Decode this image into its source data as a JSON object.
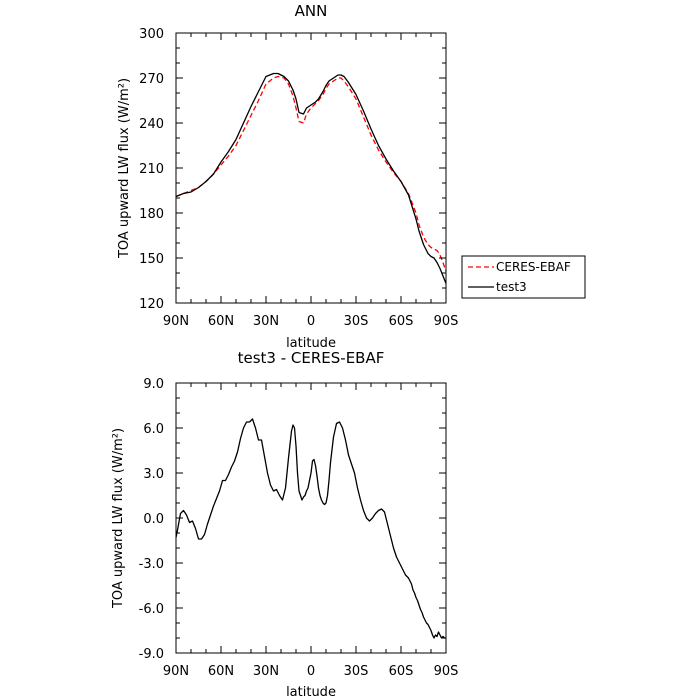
{
  "chart_data": [
    {
      "type": "line",
      "title": "ANN",
      "xlabel": "latitude",
      "ylabel": "TOA upward LW flux (W/m²)",
      "xlim": [
        90,
        -90
      ],
      "ylim": [
        120,
        300
      ],
      "x_ticks": [
        90,
        60,
        30,
        0,
        -30,
        -60,
        -90
      ],
      "x_tick_labels": [
        "90N",
        "60N",
        "30N",
        "0",
        "30S",
        "60S",
        "90S"
      ],
      "y_ticks": [
        120,
        150,
        180,
        210,
        240,
        270,
        300
      ],
      "y_tick_labels": [
        "120",
        "150",
        "180",
        "210",
        "240",
        "270",
        "300"
      ],
      "legend_position": "right",
      "series": [
        {
          "name": "CERES-EBAF",
          "color": "#ff0000",
          "dash": "dashed",
          "x": [
            90,
            85,
            80,
            75,
            70,
            65,
            60,
            55,
            50,
            45,
            40,
            35,
            30,
            25,
            22,
            18,
            15,
            12,
            10,
            8,
            5,
            3,
            0,
            -3,
            -5,
            -8,
            -10,
            -12,
            -15,
            -18,
            -20,
            -22,
            -25,
            -30,
            -35,
            -40,
            -45,
            -50,
            -55,
            -60,
            -65,
            -70,
            -72,
            -75,
            -78,
            -80,
            -82,
            -84,
            -86,
            -88,
            -90
          ],
          "y": [
            191,
            193,
            195,
            197,
            201,
            206,
            212,
            218,
            225,
            235,
            245,
            255,
            266,
            270,
            271,
            270,
            266,
            258,
            250,
            241,
            240,
            246,
            250,
            253,
            255,
            259,
            263,
            266,
            268,
            270,
            270,
            268,
            264,
            256,
            244,
            232,
            222,
            214,
            207,
            201,
            193,
            180,
            172,
            164,
            159,
            157,
            156,
            155,
            152,
            147,
            141
          ]
        },
        {
          "name": "test3",
          "color": "#000000",
          "dash": "solid",
          "x": [
            90,
            85,
            80,
            75,
            70,
            65,
            60,
            55,
            50,
            45,
            40,
            35,
            30,
            25,
            22,
            18,
            15,
            12,
            10,
            8,
            5,
            3,
            0,
            -3,
            -5,
            -8,
            -10,
            -12,
            -15,
            -18,
            -20,
            -22,
            -25,
            -30,
            -35,
            -40,
            -45,
            -50,
            -55,
            -60,
            -65,
            -70,
            -72,
            -75,
            -78,
            -80,
            -82,
            -84,
            -86,
            -88,
            -90
          ],
          "y": [
            191,
            193,
            194,
            197,
            201,
            206,
            214,
            221,
            229,
            240,
            251,
            261,
            271,
            273,
            273,
            271,
            268,
            262,
            256,
            247,
            246,
            250,
            252,
            254,
            256,
            261,
            265,
            268,
            270,
            272,
            272,
            271,
            267,
            259,
            248,
            236,
            225,
            216,
            208,
            201,
            192,
            176,
            168,
            159,
            153,
            151,
            150,
            147,
            143,
            138,
            133
          ]
        }
      ]
    },
    {
      "type": "line",
      "title": "test3 - CERES-EBAF",
      "xlabel": "latitude",
      "ylabel": "TOA upward LW flux (W/m²)",
      "xlim": [
        90,
        -90
      ],
      "ylim": [
        -9,
        9
      ],
      "x_ticks": [
        90,
        60,
        30,
        0,
        -30,
        -60,
        -90
      ],
      "x_tick_labels": [
        "90N",
        "60N",
        "30N",
        "0",
        "30S",
        "60S",
        "90S"
      ],
      "y_ticks": [
        -9,
        -6,
        -3,
        0,
        3,
        6,
        9
      ],
      "y_tick_labels": [
        "-9.0",
        "-6.0",
        "-3.0",
        "0.0",
        "3.0",
        "6.0",
        "9.0"
      ],
      "series": [
        {
          "color": "#000000",
          "dash": "solid",
          "x": [
            90,
            89,
            87,
            85,
            83,
            81,
            79,
            77,
            75,
            73,
            71,
            69,
            67,
            65,
            63,
            61,
            59,
            57,
            55,
            53,
            51,
            49,
            47,
            45,
            43,
            41,
            39,
            37,
            35,
            33,
            31,
            29,
            27,
            25,
            23,
            21,
            19,
            17,
            15,
            13,
            12,
            11,
            10,
            9,
            8,
            7,
            6,
            5,
            4,
            3,
            2,
            1,
            0,
            -1,
            -2,
            -3,
            -4,
            -5,
            -6,
            -7,
            -8,
            -9,
            -10,
            -11,
            -12,
            -13,
            -15,
            -17,
            -19,
            -21,
            -23,
            -25,
            -27,
            -29,
            -31,
            -33,
            -35,
            -37,
            -39,
            -41,
            -43,
            -45,
            -47,
            -49,
            -51,
            -53,
            -55,
            -57,
            -59,
            -61,
            -63,
            -65,
            -66,
            -67,
            -68,
            -69,
            -70,
            -71,
            -72,
            -73,
            -74,
            -75,
            -76,
            -77,
            -78,
            -79,
            -80,
            -81,
            -82,
            -83,
            -84,
            -85,
            -86,
            -87,
            -88,
            -89,
            -90
          ],
          "y": [
            -1.3,
            -0.8,
            0.3,
            0.5,
            0.2,
            -0.3,
            -0.2,
            -0.7,
            -1.4,
            -1.4,
            -1.1,
            -0.4,
            0.2,
            0.8,
            1.3,
            1.8,
            2.5,
            2.5,
            2.9,
            3.4,
            3.8,
            4.4,
            5.3,
            6.0,
            6.4,
            6.4,
            6.6,
            6.0,
            5.2,
            5.2,
            4.1,
            3.0,
            2.2,
            1.8,
            1.9,
            1.5,
            1.2,
            2.0,
            4.0,
            5.8,
            6.2,
            6.0,
            4.8,
            3.0,
            1.8,
            1.5,
            1.2,
            1.4,
            1.5,
            1.8,
            2.0,
            2.5,
            3.0,
            3.8,
            3.9,
            3.5,
            2.8,
            2.0,
            1.5,
            1.2,
            1.0,
            0.9,
            1.0,
            1.5,
            2.5,
            3.7,
            5.4,
            6.3,
            6.4,
            6.0,
            5.2,
            4.2,
            3.6,
            3.0,
            2.0,
            1.2,
            0.5,
            0.0,
            -0.2,
            0.0,
            0.3,
            0.5,
            0.6,
            0.4,
            -0.4,
            -1.2,
            -2.0,
            -2.6,
            -3.0,
            -3.4,
            -3.8,
            -4.0,
            -4.2,
            -4.4,
            -4.8,
            -5.0,
            -5.3,
            -5.5,
            -5.8,
            -6.1,
            -6.3,
            -6.6,
            -6.8,
            -7.0,
            -7.1,
            -7.3,
            -7.5,
            -7.8,
            -8.0,
            -7.8,
            -7.9,
            -7.6,
            -7.8,
            -8.0,
            -7.9,
            -8.0,
            -8.0
          ]
        }
      ]
    }
  ]
}
